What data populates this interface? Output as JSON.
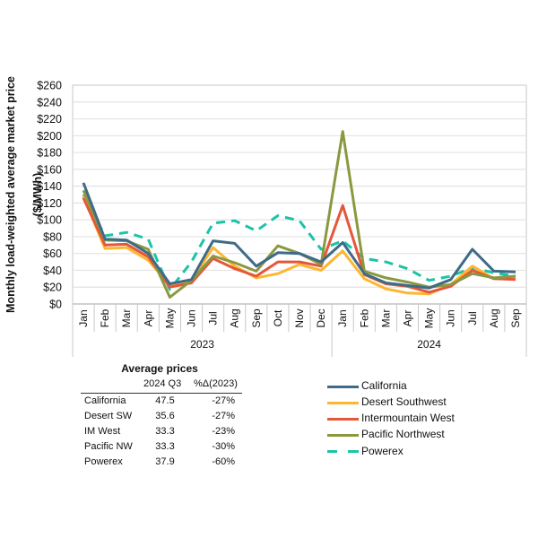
{
  "chart_data": {
    "type": "line",
    "ylabel": "Monthly load-weighted average market price ($/MWh)",
    "ylabel_lines": [
      "Monthly load-weighted average market price",
      "($/MWh)"
    ],
    "ylim": [
      0,
      260
    ],
    "ytick_step": 20,
    "yticks": [
      "$0",
      "$20",
      "$40",
      "$60",
      "$80",
      "$100",
      "$120",
      "$140",
      "$160",
      "$180",
      "$200",
      "$220",
      "$240",
      "$260"
    ],
    "grid": true,
    "categories": [
      "Jan",
      "Feb",
      "Mar",
      "Apr",
      "May",
      "Jun",
      "Jul",
      "Aug",
      "Sep",
      "Oct",
      "Nov",
      "Dec",
      "Jan",
      "Feb",
      "Mar",
      "Apr",
      "May",
      "Jun",
      "Jul",
      "Aug",
      "Sep"
    ],
    "groups": [
      {
        "label": "2023",
        "count": 12
      },
      {
        "label": "2024",
        "count": 9
      }
    ],
    "legend_position": "bottom-right",
    "series": [
      {
        "name": "California",
        "color": "#3E6B88",
        "dash": false,
        "values": [
          144,
          77,
          76,
          60,
          24,
          29,
          75,
          72,
          45,
          61,
          60,
          50,
          73,
          36,
          25,
          22,
          19,
          29,
          65,
          39,
          38
        ]
      },
      {
        "name": "Desert Southwest",
        "color": "#FDB62F",
        "dash": false,
        "values": [
          128,
          66,
          67,
          52,
          22,
          28,
          67,
          45,
          31,
          36,
          47,
          40,
          63,
          30,
          18,
          13,
          12,
          23,
          45,
          30,
          30
        ]
      },
      {
        "name": "Intermountain West",
        "color": "#E4573A",
        "dash": false,
        "values": [
          126,
          70,
          71,
          56,
          20,
          25,
          54,
          42,
          33,
          50,
          50,
          45,
          117,
          35,
          24,
          21,
          14,
          21,
          40,
          30,
          29
        ]
      },
      {
        "name": "Pacific Northwest",
        "color": "#8A993F",
        "dash": false,
        "values": [
          135,
          76,
          75,
          65,
          8,
          28,
          57,
          49,
          39,
          69,
          60,
          47,
          205,
          39,
          31,
          26,
          20,
          23,
          36,
          31,
          33
        ]
      },
      {
        "name": "Powerex",
        "color": "#1CC3A8",
        "dash": true,
        "values": [
          130,
          81,
          85,
          77,
          17,
          50,
          96,
          99,
          87,
          105,
          99,
          65,
          75,
          54,
          50,
          42,
          28,
          33,
          43,
          37,
          33
        ]
      }
    ]
  },
  "table": {
    "title": "Average prices",
    "headers": [
      "2024 Q3",
      "%Δ(2023)"
    ],
    "rows": [
      {
        "name": "California",
        "value": "47.5",
        "change": "-27%"
      },
      {
        "name": "Desert SW",
        "value": "35.6",
        "change": "-27%"
      },
      {
        "name": "IM West",
        "value": "33.3",
        "change": "-23%"
      },
      {
        "name": "Pacific NW",
        "value": "33.3",
        "change": "-30%"
      },
      {
        "name": "Powerex",
        "value": "37.9",
        "change": "-60%"
      }
    ]
  }
}
